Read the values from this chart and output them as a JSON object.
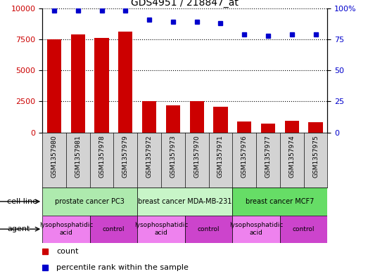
{
  "title": "GDS4951 / 218847_at",
  "samples": [
    "GSM1357980",
    "GSM1357981",
    "GSM1357978",
    "GSM1357979",
    "GSM1357972",
    "GSM1357973",
    "GSM1357970",
    "GSM1357971",
    "GSM1357976",
    "GSM1357977",
    "GSM1357974",
    "GSM1357975"
  ],
  "counts": [
    7500,
    7900,
    7600,
    8100,
    2500,
    2200,
    2500,
    2100,
    900,
    700,
    950,
    800
  ],
  "percentiles": [
    98,
    98,
    98,
    98,
    91,
    89,
    89,
    88,
    79,
    78,
    79,
    79
  ],
  "cell_line_groups": [
    {
      "label": "prostate cancer PC3",
      "start": 0,
      "end": 3,
      "color": "#AEEAAE"
    },
    {
      "label": "breast cancer MDA-MB-231",
      "start": 4,
      "end": 7,
      "color": "#C8F5C8"
    },
    {
      "label": "breast cancer MCF7",
      "start": 8,
      "end": 11,
      "color": "#66DD66"
    }
  ],
  "agent_groups": [
    {
      "label": "lysophosphatidic\nacid",
      "start": 0,
      "end": 1,
      "color": "#EE82EE"
    },
    {
      "label": "control",
      "start": 2,
      "end": 3,
      "color": "#DD55DD"
    },
    {
      "label": "lysophosphatidic\nacid",
      "start": 4,
      "end": 5,
      "color": "#EE82EE"
    },
    {
      "label": "control",
      "start": 6,
      "end": 7,
      "color": "#DD55DD"
    },
    {
      "label": "lysophosphatidic\nacid",
      "start": 8,
      "end": 9,
      "color": "#EE82EE"
    },
    {
      "label": "control",
      "start": 10,
      "end": 11,
      "color": "#DD55DD"
    }
  ],
  "bar_color": "#CC0000",
  "dot_color": "#0000CC",
  "ylim_left": [
    0,
    10000
  ],
  "ylim_right": [
    0,
    100
  ],
  "yticks_left": [
    0,
    2500,
    5000,
    7500,
    10000
  ],
  "yticks_right": [
    0,
    25,
    50,
    75,
    100
  ],
  "ylabel_left_color": "#CC0000",
  "ylabel_right_color": "#0000CC",
  "sample_bg_color": "#D3D3D3",
  "background_color": "#ffffff"
}
